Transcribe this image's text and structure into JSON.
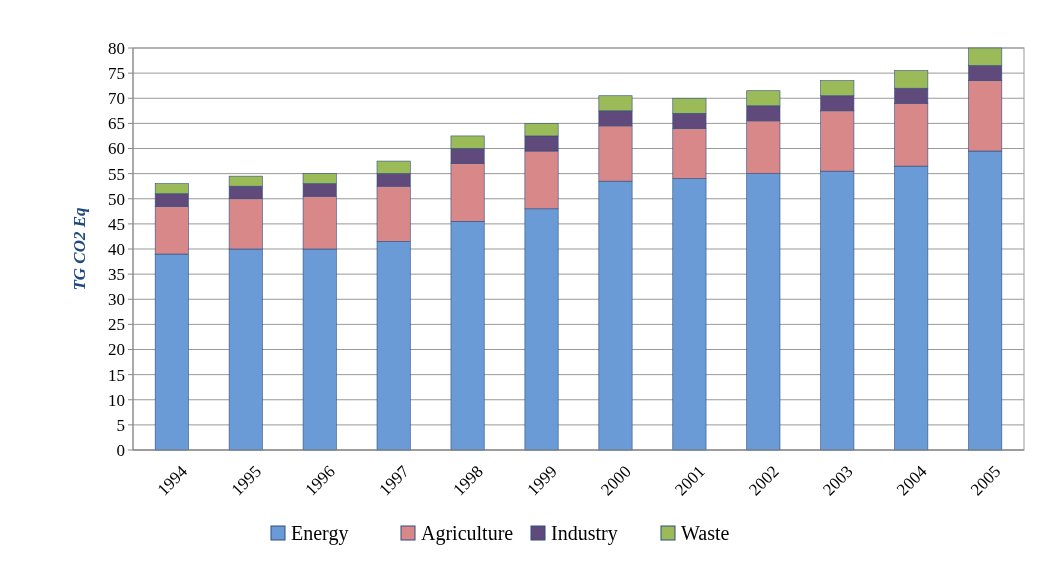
{
  "chart_data": {
    "type": "bar",
    "stacked": true,
    "ylabel": "TG CO2 Eq",
    "categories": [
      "1994",
      "1995",
      "1996",
      "1997",
      "1998",
      "1999",
      "2000",
      "2001",
      "2002",
      "2003",
      "2004",
      "2005"
    ],
    "series": [
      {
        "name": "Energy",
        "color": "#6a9bd6",
        "values": [
          39,
          40,
          40,
          41.5,
          45.5,
          48,
          53.5,
          54,
          55,
          55.5,
          56.5,
          59.5
        ]
      },
      {
        "name": "Agriculture",
        "color": "#d9888a",
        "values": [
          9.5,
          10,
          10.5,
          11,
          11.5,
          11.5,
          11,
          10,
          10.5,
          12,
          12.5,
          14
        ]
      },
      {
        "name": "Industry",
        "color": "#604a7b",
        "values": [
          2.5,
          2.5,
          2.5,
          2.5,
          3,
          3,
          3,
          3,
          3,
          3,
          3,
          3
        ]
      },
      {
        "name": "Waste",
        "color": "#9bbb59",
        "values": [
          2,
          2,
          2,
          2.5,
          2.5,
          2.5,
          3,
          3,
          3,
          3,
          3.5,
          3.5
        ]
      }
    ],
    "ylim": [
      0,
      80
    ],
    "yticks": [
      0,
      5,
      10,
      15,
      20,
      25,
      30,
      35,
      40,
      45,
      50,
      55,
      60,
      65,
      70,
      75,
      80
    ],
    "grid": "y",
    "legend": "bottom"
  }
}
